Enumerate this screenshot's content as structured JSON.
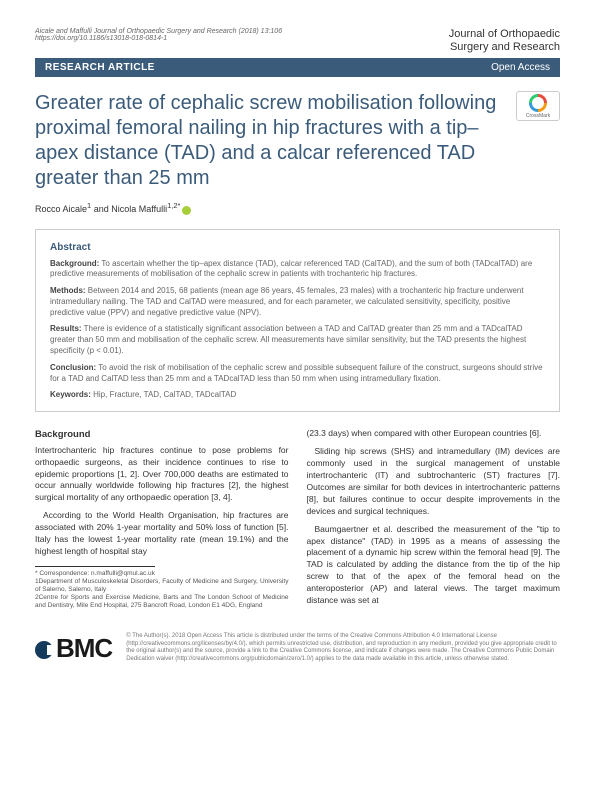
{
  "header": {
    "citation": "Aicale and Maffulli Journal of Orthopaedic Surgery and Research (2018) 13:106",
    "doi": "https://doi.org/10.1186/s13018-018-0814-1",
    "journal_line1": "Journal of Orthopaedic",
    "journal_line2": "Surgery and Research"
  },
  "banner": {
    "left": "RESEARCH ARTICLE",
    "right": "Open Access"
  },
  "title": "Greater rate of cephalic screw mobilisation following proximal femoral nailing in hip fractures with a tip–apex distance (TAD) and a calcar referenced TAD greater than 25 mm",
  "authors": {
    "a1": "Rocco Aicale",
    "a1_aff": "1",
    "and": " and ",
    "a2": "Nicola Maffulli",
    "a2_aff": "1,2*"
  },
  "crossmark_label": "CrossMark",
  "abstract": {
    "heading": "Abstract",
    "background_label": "Background:",
    "background": " To ascertain whether the tip–apex distance (TAD), calcar referenced TAD (CalTAD), and the sum of both (TADcalTAD) are predictive measurements of mobilisation of the cephalic screw in patients with trochanteric hip fractures.",
    "methods_label": "Methods:",
    "methods": " Between 2014 and 2015, 68 patients (mean age 86 years, 45 females, 23 males) with a trochanteric hip fracture underwent intramedullary nailing. The TAD and CalTAD were measured, and for each parameter, we calculated sensitivity, specificity, positive predictive value (PPV) and negative predictive value (NPV).",
    "results_label": "Results:",
    "results": " There is evidence of a statistically significant association between a TAD and CalTAD greater than 25 mm and a TADcalTAD greater than 50 mm and mobilisation of the cephalic screw. All measurements have similar sensitivity, but the TAD presents the highest specificity (p < 0.01).",
    "conclusion_label": "Conclusion:",
    "conclusion": " To avoid the risk of mobilisation of the cephalic screw and possible subsequent failure of the construct, surgeons should strive for a TAD and CalTAD less than 25 mm and a TADcalTAD less than 50 mm when using intramedullary fixation.",
    "keywords_label": "Keywords:",
    "keywords": " Hip, Fracture, TAD, CalTAD, TADcalTAD"
  },
  "body": {
    "background_head": "Background",
    "p1": "Intertrochanteric hip fractures continue to pose problems for orthopaedic surgeons, as their incidence continues to rise to epidemic proportions [1, 2]. Over 700,000 deaths are estimated to occur annually worldwide following hip fractures [2], the highest surgical mortality of any orthopaedic operation [3, 4].",
    "p2": "According to the World Health Organisation, hip fractures are associated with 20% 1-year mortality and 50% loss of function [5]. Italy has the lowest 1-year mortality rate (mean 19.1%) and the highest length of hospital stay",
    "p3": "(23.3 days) when compared with other European countries [6].",
    "p4": "Sliding hip screws (SHS) and intramedullary (IM) devices are commonly used in the surgical management of unstable intertrochanteric (IT) and subtrochanteric (ST) fractures [7]. Outcomes are similar for both devices in intertrochanteric patterns [8], but failures continue to occur despite improvements in the devices and surgical techniques.",
    "p5": "Baumgaertner et al. described the measurement of the \"tip to apex distance\" (TAD) in 1995 as a means of assessing the placement of a dynamic hip screw within the femoral head [9]. The TAD is calculated by adding the distance from the tip of the hip screw to that of the apex of the femoral head on the anteroposterior (AP) and lateral views. The target maximum distance was set at"
  },
  "footnotes": {
    "corr": "* Correspondence: n.maffulli@qmul.ac.uk",
    "aff1": "1Department of Musculoskeletal Disorders, Faculty of Medicine and Surgery, University of Salerno, Salerno, Italy",
    "aff2": "2Centre for Sports and Exercise Medicine, Barts and The London School of Medicine and Dentistry, Mile End Hospital, 275 Bancroft Road, London E1 4DG, England"
  },
  "footer": {
    "bmc": "BMC",
    "license": "© The Author(s). 2018 Open Access This article is distributed under the terms of the Creative Commons Attribution 4.0 International License (http://creativecommons.org/licenses/by/4.0/), which permits unrestricted use, distribution, and reproduction in any medium, provided you give appropriate credit to the original author(s) and the source, provide a link to the Creative Commons license, and indicate if changes were made. The Creative Commons Public Domain Dedication waiver (http://creativecommons.org/publicdomain/zero/1.0/) applies to the data made available in this article, unless otherwise stated."
  }
}
